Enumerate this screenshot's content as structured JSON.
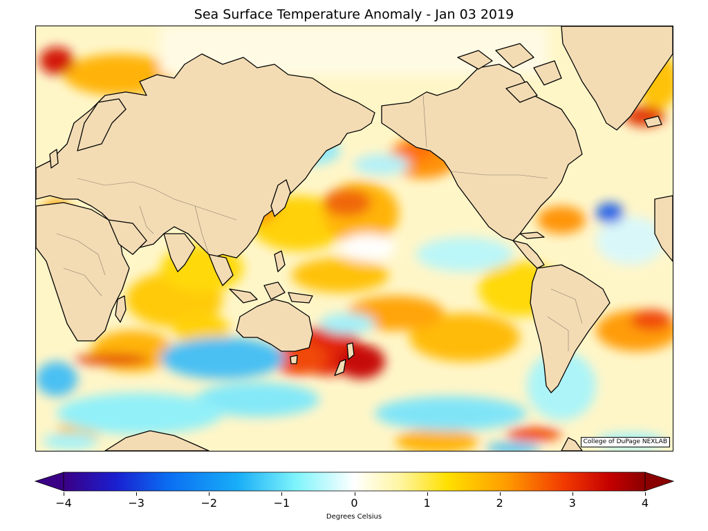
{
  "title": "Sea Surface Temperature Anomaly - Jan 03 2019",
  "credit": "College of DuPage NEXLAB",
  "colorbar": {
    "label": "Degrees Celsius",
    "min": -4,
    "max": 4,
    "ticks": [
      "−4",
      "−3",
      "−2",
      "−1",
      "0",
      "1",
      "2",
      "3",
      "4"
    ],
    "colors": [
      "#3a0085",
      "#1a1fd0",
      "#0a6ef2",
      "#19aef8",
      "#7ff4fb",
      "#ffffff",
      "#fff5a0",
      "#ffe000",
      "#ff9d00",
      "#f23a00",
      "#c40000",
      "#8a0000"
    ]
  },
  "map_colors": {
    "land": "#f3dcb4",
    "coast": "#000000",
    "borders": "#8a7a6a"
  }
}
